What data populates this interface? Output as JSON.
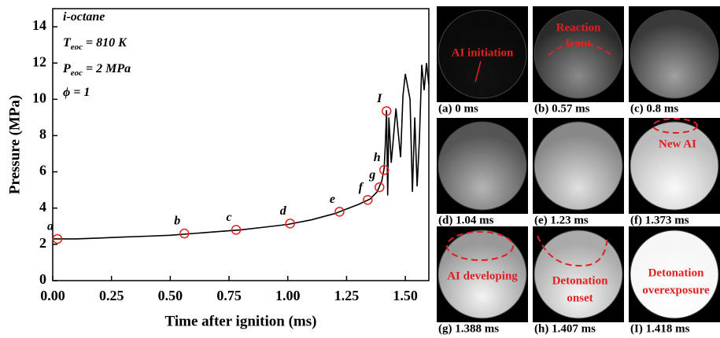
{
  "chart_data": {
    "type": "line",
    "x_label": "Time after ignition (ms)",
    "y_label": "Pressure (MPa)",
    "xlim": [
      0,
      1.6
    ],
    "ylim": [
      0,
      15
    ],
    "xticks": [
      {
        "value": 0,
        "label": "0.00"
      },
      {
        "value": 0.25,
        "label": "0.25"
      },
      {
        "value": 0.5,
        "label": "0.50"
      },
      {
        "value": 0.75,
        "label": "0.75"
      },
      {
        "value": 1,
        "label": "1.00"
      },
      {
        "value": 1.25,
        "label": "1.25"
      },
      {
        "value": 1.5,
        "label": "1.50"
      }
    ],
    "yticks": [
      0,
      2,
      4,
      6,
      8,
      10,
      12,
      14
    ],
    "series": [
      {
        "color": "#000000",
        "x": [
          0,
          0.1,
          0.2,
          0.3,
          0.4,
          0.5,
          0.6,
          0.7,
          0.8,
          0.9,
          1.0,
          1.1,
          1.2,
          1.25,
          1.3,
          1.35,
          1.38,
          1.4,
          1.41,
          1.415,
          1.42,
          1.425,
          1.43,
          1.44,
          1.46,
          1.48,
          1.49,
          1.5,
          1.52,
          1.53,
          1.54,
          1.55,
          1.56,
          1.57,
          1.58,
          1.59,
          1.6
        ],
        "values": [
          2.3,
          2.3,
          2.35,
          2.4,
          2.45,
          2.5,
          2.6,
          2.7,
          2.8,
          2.95,
          3.1,
          3.35,
          3.7,
          3.95,
          4.2,
          4.5,
          4.9,
          5.5,
          6.2,
          7.5,
          9.4,
          4.7,
          9.0,
          6.5,
          9.5,
          6.8,
          10.2,
          11.4,
          10.0,
          4.9,
          9.0,
          5.2,
          7.8,
          11.9,
          10.5,
          12.0,
          10.8
        ]
      }
    ],
    "markers": {
      "color": "#e02020",
      "labels": [
        "a",
        "b",
        "c",
        "d",
        "e",
        "f",
        "g",
        "h",
        "I"
      ],
      "x": [
        0.02,
        0.56,
        0.78,
        1.01,
        1.22,
        1.34,
        1.39,
        1.41,
        1.42
      ],
      "values": [
        2.3,
        2.6,
        2.8,
        3.15,
        3.8,
        4.45,
        5.15,
        6.1,
        9.35
      ]
    },
    "annotations": [
      {
        "text": "i-octane"
      },
      {
        "symbol": "T",
        "sub": "eoc",
        "text": " = 810 K"
      },
      {
        "symbol": "P",
        "sub": "eoc",
        "text": " = 2 MPa"
      },
      {
        "text": "ϕ = 1"
      }
    ]
  },
  "panels": [
    {
      "caption": "(a) 0 ms",
      "note": [
        "AI initiation"
      ]
    },
    {
      "caption": "(b) 0.57 ms",
      "note": [
        "Reaction",
        "front"
      ]
    },
    {
      "caption": "(c) 0.8 ms",
      "note": []
    },
    {
      "caption": "(d) 1.04 ms",
      "note": []
    },
    {
      "caption": "(e) 1.23 ms",
      "note": []
    },
    {
      "caption": "(f) 1.373 ms",
      "note": [
        "New AI"
      ]
    },
    {
      "caption": "(g) 1.388 ms",
      "note": [
        "AI developing"
      ]
    },
    {
      "caption": "(h) 1.407 ms",
      "note": [
        "Detonation",
        "onset"
      ]
    },
    {
      "caption": "(I) 1.418 ms",
      "note": [
        "Detonation",
        "overexposure"
      ]
    }
  ]
}
